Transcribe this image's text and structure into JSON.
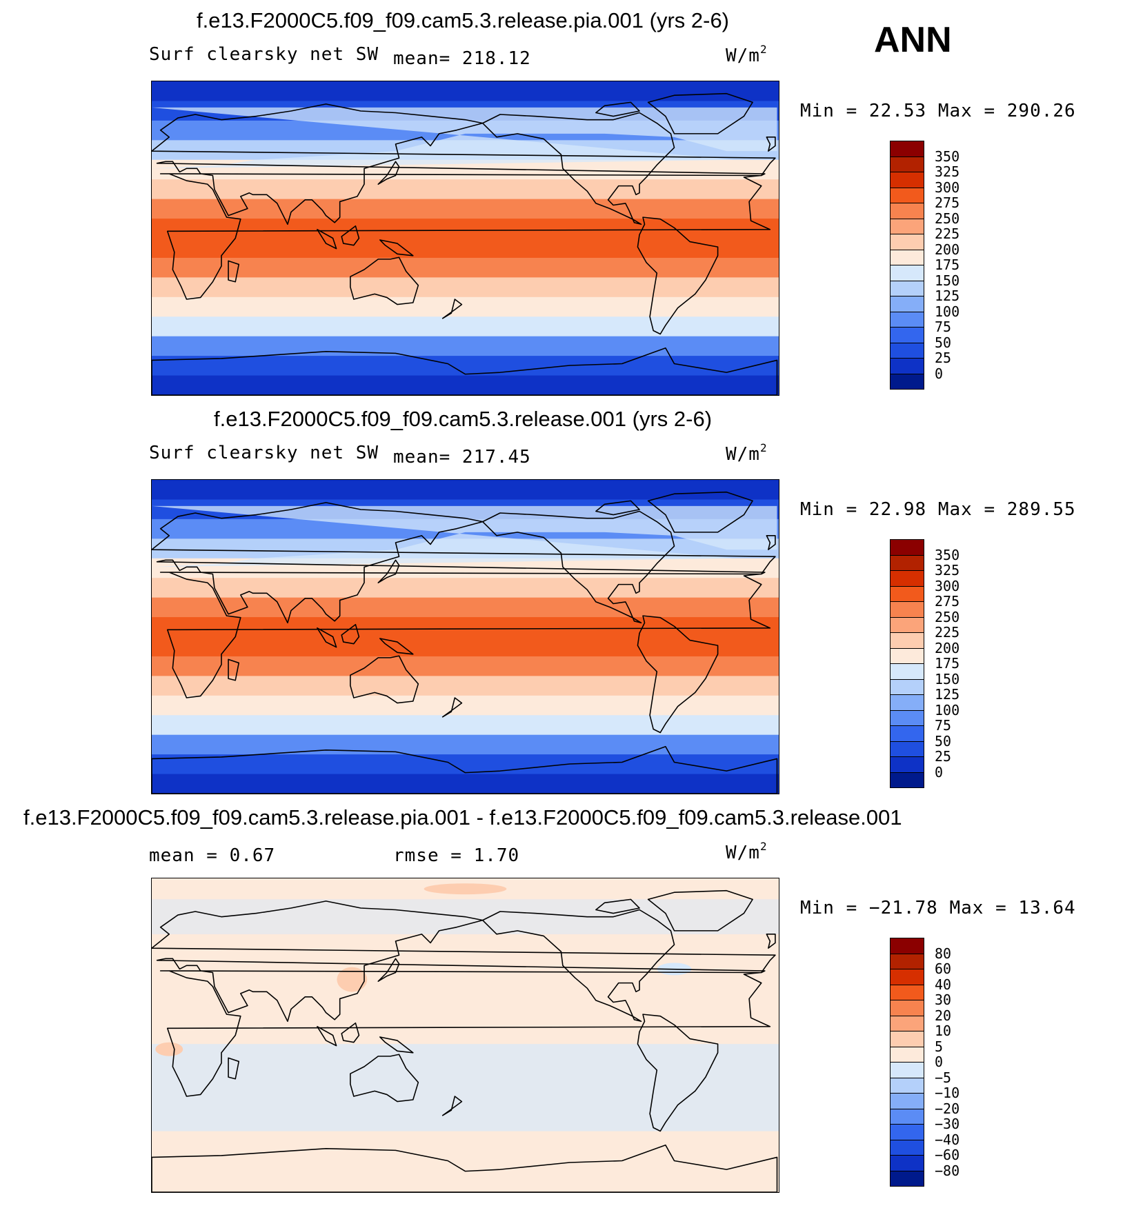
{
  "season": "ANN",
  "units_base": "W/m",
  "units_exp": "2",
  "panels": [
    {
      "title": "f.e13.F2000C5.f09_f09.cam5.3.release.pia.001 (yrs 2-6)",
      "variable": "Surf clearsky net SW",
      "stat": "mean= 218.12",
      "minmax": "Min =   22.53 Max =  290.26"
    },
    {
      "title": "f.e13.F2000C5.f09_f09.cam5.3.release.001 (yrs 2-6)",
      "variable": "Surf clearsky net SW",
      "stat": "mean= 217.45",
      "minmax": "Min =   22.98 Max =  289.55"
    },
    {
      "title": "f.e13.F2000C5.f09_f09.cam5.3.release.pia.001 - f.e13.F2000C5.f09_f09.cam5.3.release.001",
      "mean": "mean =    0.67",
      "rmse": "rmse =    1.70",
      "minmax": "Min = −21.78 Max =   13.64"
    }
  ],
  "colorbar_field": {
    "labels": [
      "350",
      "325",
      "300",
      "275",
      "250",
      "225",
      "200",
      "175",
      "150",
      "125",
      "100",
      "75",
      "50",
      "25",
      "0"
    ],
    "colors": [
      "#8b0000",
      "#b22200",
      "#d62f00",
      "#f25a1c",
      "#f7834f",
      "#fba47a",
      "#fdcdb0",
      "#fdeadb",
      "#d6e8fb",
      "#b4d0fa",
      "#85aef8",
      "#5b8cf5",
      "#3366ee",
      "#1f4fe0",
      "#0e32c6",
      "#001a8c"
    ]
  },
  "colorbar_diff": {
    "labels": [
      "80",
      "60",
      "40",
      "30",
      "20",
      "10",
      "5",
      "0",
      "−5",
      "−10",
      "−20",
      "−30",
      "−40",
      "−60",
      "−80"
    ],
    "colors": [
      "#8b0000",
      "#b22200",
      "#d62f00",
      "#f25a1c",
      "#f7834f",
      "#fba47a",
      "#fdcdb0",
      "#fdeadb",
      "#d6e8fb",
      "#b4d0fa",
      "#85aef8",
      "#5b8cf5",
      "#3366ee",
      "#1f4fe0",
      "#0e32c6",
      "#001a8c"
    ]
  },
  "colors": {
    "field_bands": [
      "#0e32c6",
      "#1f4fe0",
      "#5b8cf5",
      "#b4d0fa",
      "#fdeadb",
      "#fdcdb0",
      "#f7834f",
      "#f25a1c",
      "#f25a1c",
      "#f7834f",
      "#fdcdb0",
      "#fdeadb",
      "#d6e8fb",
      "#5b8cf5",
      "#1f4fe0",
      "#0e32c6"
    ],
    "diff_background": "#fdeadb",
    "diff_negative": "#d6e8fb",
    "diff_positive": "#fdcdb0"
  }
}
